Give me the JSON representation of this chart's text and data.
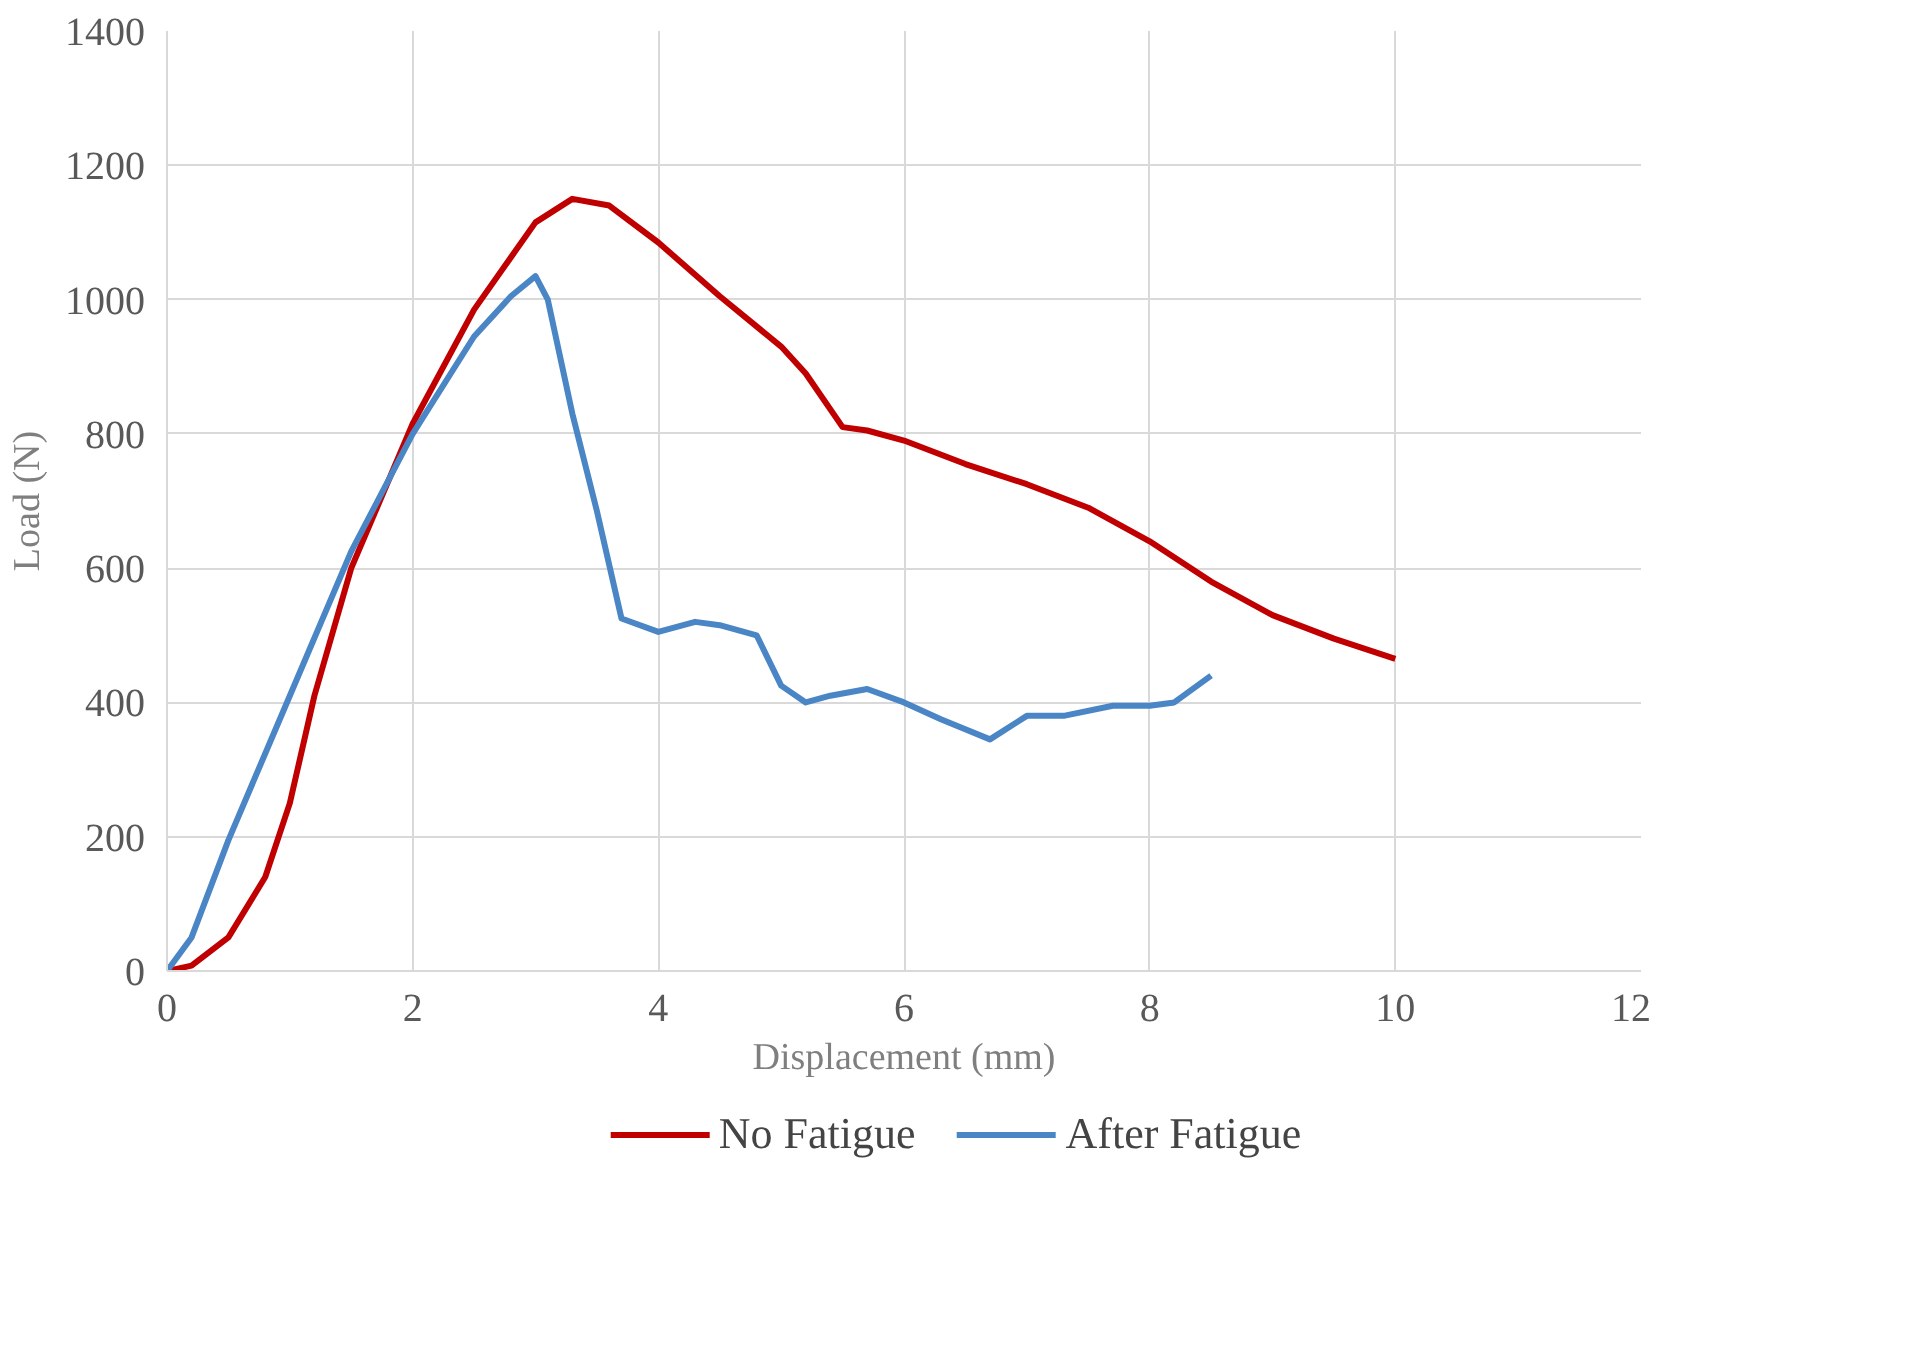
{
  "chart_data": {
    "type": "line",
    "xlabel": "Displacement (mm)",
    "ylabel": "Load (N)",
    "xlim": [
      0,
      12
    ],
    "xticks": [
      0,
      2,
      4,
      6,
      8,
      10,
      12
    ],
    "ylim": [
      0,
      1400
    ],
    "yticks": [
      0,
      200,
      400,
      600,
      800,
      1000,
      1200,
      1400
    ],
    "grid": true,
    "legend": "bottom",
    "marker": "none",
    "line_style": "solid",
    "series": [
      {
        "name": "No Fatigue",
        "color": "#c00000",
        "x": [
          0,
          0.2,
          0.5,
          0.8,
          1.0,
          1.2,
          1.5,
          2.0,
          2.5,
          3.0,
          3.3,
          3.6,
          4.0,
          4.5,
          5.0,
          5.2,
          5.5,
          5.7,
          6.0,
          6.5,
          7.0,
          7.5,
          8.0,
          8.5,
          9.0,
          9.5,
          10
        ],
        "values": [
          0,
          8,
          50,
          140,
          250,
          410,
          600,
          815,
          985,
          1115,
          1150,
          1140,
          1085,
          1005,
          930,
          890,
          810,
          805,
          790,
          755,
          725,
          690,
          640,
          580,
          530,
          495,
          465
        ]
      },
      {
        "name": "After Fatigue",
        "color": "#4a86c5",
        "x": [
          0,
          0.2,
          0.5,
          1.0,
          1.5,
          2.0,
          2.5,
          2.8,
          3.0,
          3.1,
          3.3,
          3.5,
          3.7,
          4.0,
          4.3,
          4.5,
          4.8,
          5.0,
          5.2,
          5.4,
          5.7,
          6.0,
          6.3,
          6.7,
          7.0,
          7.3,
          7.7,
          8.0,
          8.2,
          8.5
        ],
        "values": [
          0,
          50,
          195,
          410,
          625,
          800,
          945,
          1005,
          1035,
          1000,
          830,
          685,
          525,
          505,
          520,
          515,
          500,
          425,
          400,
          410,
          420,
          400,
          375,
          345,
          380,
          380,
          395,
          395,
          400,
          440
        ]
      }
    ]
  }
}
